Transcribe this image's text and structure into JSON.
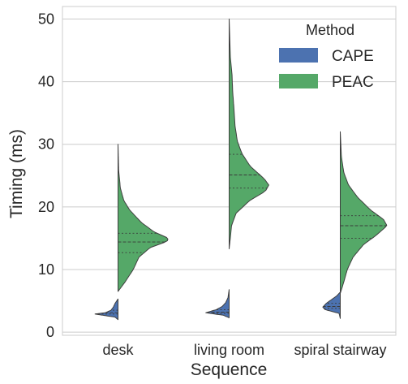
{
  "chart_data": {
    "type": "violin-split",
    "title": "",
    "xlabel": "Sequence",
    "ylabel": "Timing (ms)",
    "categories": [
      "desk",
      "living room",
      "spiral stairway"
    ],
    "ylim": [
      -0.5,
      52
    ],
    "yticks": [
      0,
      10,
      20,
      30,
      40,
      50
    ],
    "grid": true,
    "legend": {
      "title": "Method",
      "placement": "top-right",
      "entries": [
        "CAPE",
        "PEAC"
      ]
    },
    "series": [
      {
        "name": "CAPE",
        "color": "#4c72b0",
        "side": "left",
        "violins": [
          {
            "category": "desk",
            "profile": [
              [
                2.0,
                0.0
              ],
              [
                2.4,
                0.05
              ],
              [
                2.9,
                0.4
              ],
              [
                3.1,
                0.22
              ],
              [
                3.5,
                0.12
              ],
              [
                4.0,
                0.08
              ],
              [
                4.6,
                0.05
              ],
              [
                5.3,
                0.0
              ]
            ],
            "quartiles": [
              2.9,
              3.1,
              3.5
            ]
          },
          {
            "category": "living room",
            "profile": [
              [
                2.3,
                0.0
              ],
              [
                2.7,
                0.1
              ],
              [
                3.1,
                0.4
              ],
              [
                3.6,
                0.22
              ],
              [
                4.1,
                0.12
              ],
              [
                4.7,
                0.06
              ],
              [
                5.5,
                0.02
              ],
              [
                6.8,
                0.0
              ]
            ],
            "quartiles": [
              3.0,
              3.2,
              3.6
            ]
          },
          {
            "category": "spiral stairway",
            "profile": [
              [
                2.2,
                0.0
              ],
              [
                3.0,
                0.02
              ],
              [
                3.6,
                0.26
              ],
              [
                4.0,
                0.3
              ],
              [
                4.6,
                0.24
              ],
              [
                5.2,
                0.15
              ],
              [
                5.8,
                0.06
              ],
              [
                6.4,
                0.0
              ]
            ],
            "quartiles": [
              3.8,
              4.1,
              4.6
            ]
          }
        ]
      },
      {
        "name": "PEAC",
        "color": "#55a868",
        "side": "right",
        "violins": [
          {
            "category": "desk",
            "profile": [
              [
                6.5,
                0.0
              ],
              [
                8.0,
                0.12
              ],
              [
                10.0,
                0.26
              ],
              [
                12.0,
                0.36
              ],
              [
                13.5,
                0.55
              ],
              [
                14.5,
                0.84
              ],
              [
                15.0,
                0.86
              ],
              [
                16.0,
                0.62
              ],
              [
                17.5,
                0.4
              ],
              [
                19.5,
                0.2
              ],
              [
                21.0,
                0.1
              ],
              [
                23.0,
                0.04
              ],
              [
                26.0,
                0.01
              ],
              [
                30.0,
                0.0
              ]
            ],
            "quartiles": [
              12.7,
              14.4,
              15.8
            ]
          },
          {
            "category": "living room",
            "profile": [
              [
                13.3,
                0.0
              ],
              [
                15.0,
                0.02
              ],
              [
                17.0,
                0.04
              ],
              [
                19.0,
                0.12
              ],
              [
                21.0,
                0.35
              ],
              [
                22.5,
                0.62
              ],
              [
                23.5,
                0.68
              ],
              [
                24.5,
                0.6
              ],
              [
                26.5,
                0.36
              ],
              [
                28.5,
                0.22
              ],
              [
                30.5,
                0.14
              ],
              [
                33.0,
                0.1
              ],
              [
                36.0,
                0.08
              ],
              [
                38.5,
                0.06
              ],
              [
                41.0,
                0.05
              ],
              [
                44.0,
                0.02
              ],
              [
                47.0,
                0.01
              ],
              [
                50.0,
                0.0
              ]
            ],
            "quartiles": [
              23.0,
              25.1,
              28.4
            ]
          },
          {
            "category": "spiral stairway",
            "profile": [
              [
                6.2,
                0.0
              ],
              [
                8.0,
                0.06
              ],
              [
                10.0,
                0.12
              ],
              [
                12.0,
                0.22
              ],
              [
                14.0,
                0.4
              ],
              [
                15.5,
                0.62
              ],
              [
                17.0,
                0.8
              ],
              [
                18.0,
                0.74
              ],
              [
                19.5,
                0.52
              ],
              [
                21.5,
                0.3
              ],
              [
                23.5,
                0.14
              ],
              [
                25.5,
                0.06
              ],
              [
                28.0,
                0.02
              ],
              [
                32.0,
                0.0
              ]
            ],
            "quartiles": [
              15.0,
              17.0,
              18.6
            ]
          }
        ]
      }
    ]
  }
}
